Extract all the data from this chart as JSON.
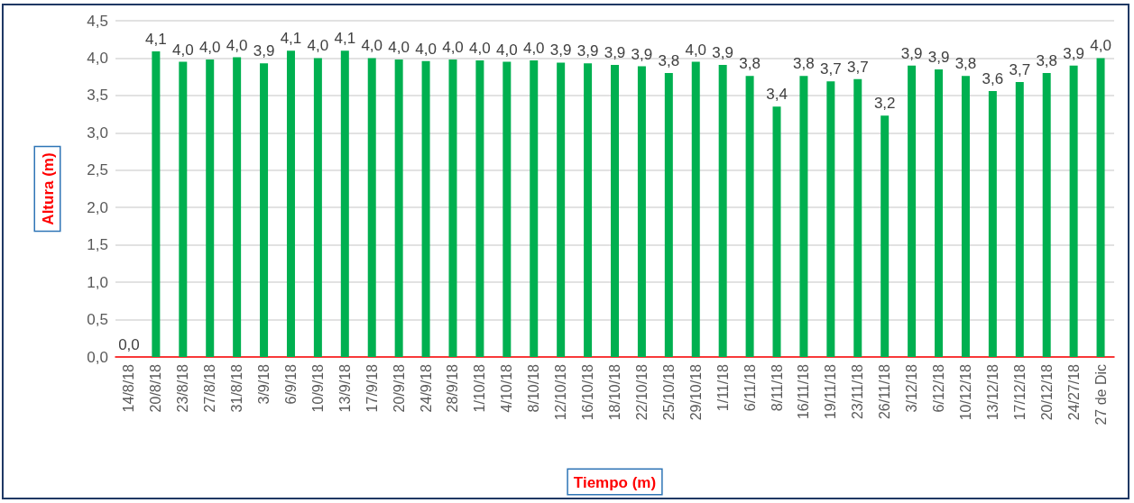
{
  "chart_data": {
    "type": "bar",
    "xlabel": "Tiempo (m)",
    "ylabel": "Altura (m)",
    "categories": [
      "14/8/18",
      "20/8/18",
      "23/8/18",
      "27/8/18",
      "31/8/18",
      "3/9/18",
      "6/9/18",
      "10/9/18",
      "13/9/18",
      "17/9/18",
      "20/9/18",
      "24/9/18",
      "28/9/18",
      "1/10/18",
      "4/10/18",
      "8/10/18",
      "12/10/18",
      "16/10/18",
      "18/10/18",
      "22/10/18",
      "25/10/18",
      "29/10/18",
      "1/11/18",
      "6/11/18",
      "8/11/18",
      "16/11/18",
      "19/11/18",
      "23/11/18",
      "26/11/18",
      "3/12/18",
      "6/12/18",
      "10/12/18",
      "13/12/18",
      "17/12/18",
      "20/12/18",
      "24/27/18",
      "27 de Dic"
    ],
    "values": [
      0,
      4.09,
      3.95,
      3.98,
      4.01,
      3.93,
      4.1,
      4.0,
      4.1,
      4.0,
      3.98,
      3.96,
      3.98,
      3.97,
      3.95,
      3.97,
      3.94,
      3.93,
      3.91,
      3.89,
      3.8,
      3.95,
      3.91,
      3.76,
      3.35,
      3.76,
      3.69,
      3.72,
      3.23,
      3.9,
      3.85,
      3.76,
      3.56,
      3.68,
      3.8,
      3.9,
      4.0
    ],
    "value_labels": [
      "0,0",
      "4,1",
      "4,0",
      "4,0",
      "4,0",
      "3,9",
      "4,1",
      "4,0",
      "4,1",
      "4,0",
      "4,0",
      "4,0",
      "4,0",
      "4,0",
      "4,0",
      "4,0",
      "3,9",
      "3,9",
      "3,9",
      "3,9",
      "3,8",
      "4,0",
      "3,9",
      "3,8",
      "3,4",
      "3,8",
      "3,7",
      "3,7",
      "3,2",
      "3,9",
      "3,9",
      "3,8",
      "3,6",
      "3,7",
      "3,8",
      "3,9",
      "4,0"
    ],
    "color": "#00b050",
    "ylim": [
      0,
      4.5
    ],
    "yticks": [
      {
        "value": 0,
        "label": "0,0"
      },
      {
        "value": 0.5,
        "label": "0,5"
      },
      {
        "value": 1,
        "label": "1,0"
      },
      {
        "value": 1.5,
        "label": "1,5"
      },
      {
        "value": 2,
        "label": "2,0"
      },
      {
        "value": 2.5,
        "label": "2,5"
      },
      {
        "value": 3,
        "label": "3,0"
      },
      {
        "value": 3.5,
        "label": "3,5"
      },
      {
        "value": 4,
        "label": "4,0"
      },
      {
        "value": 4.5,
        "label": "4,5"
      }
    ],
    "grid": "y"
  }
}
